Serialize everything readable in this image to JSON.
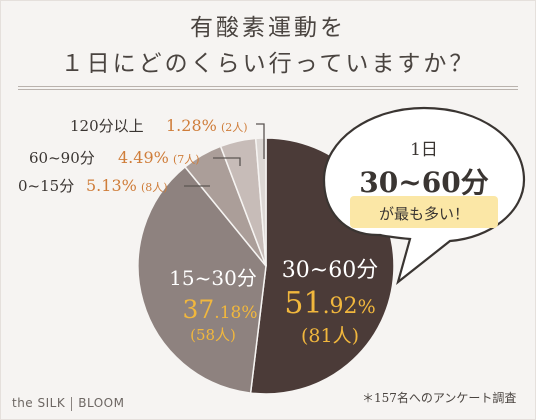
{
  "title": {
    "line1": "有酸素運動を",
    "line2": "１日にどのくらい行っていますか？"
  },
  "chart_data": {
    "type": "pie",
    "slices": [
      {
        "label": "30~60分",
        "value": 51.92,
        "pct_int": "51",
        "pct_dec": ".92",
        "pct_sym": "%",
        "count": "(81人)",
        "color": "#4b3b38"
      },
      {
        "label": "15~30分",
        "value": 37.18,
        "pct_int": "37",
        "pct_dec": ".18",
        "pct_sym": "%",
        "count": "(58人)",
        "color": "#8e827f"
      },
      {
        "label": "0~15分",
        "value": 5.13,
        "pct": "5.13%",
        "count": "(8人)",
        "color": "#ab9e99"
      },
      {
        "label": "60~90分",
        "value": 4.49,
        "pct": "4.49%",
        "count": "(7人)",
        "color": "#c7bcb8"
      },
      {
        "label": "120分以上",
        "value": 1.28,
        "pct": "1.28%",
        "count": "(2人)",
        "color": "#dcd7d4"
      }
    ],
    "colors": {
      "highlight": "#f1b73d",
      "callout_pct": "#cf7d3a"
    }
  },
  "bubble": {
    "line1": "1日",
    "line2": "30~60分",
    "line3": "が最も多い！"
  },
  "footer": {
    "brand_left": "the SILK",
    "brand_right": "BLOOM",
    "note": "＊157名へのアンケート調査"
  }
}
